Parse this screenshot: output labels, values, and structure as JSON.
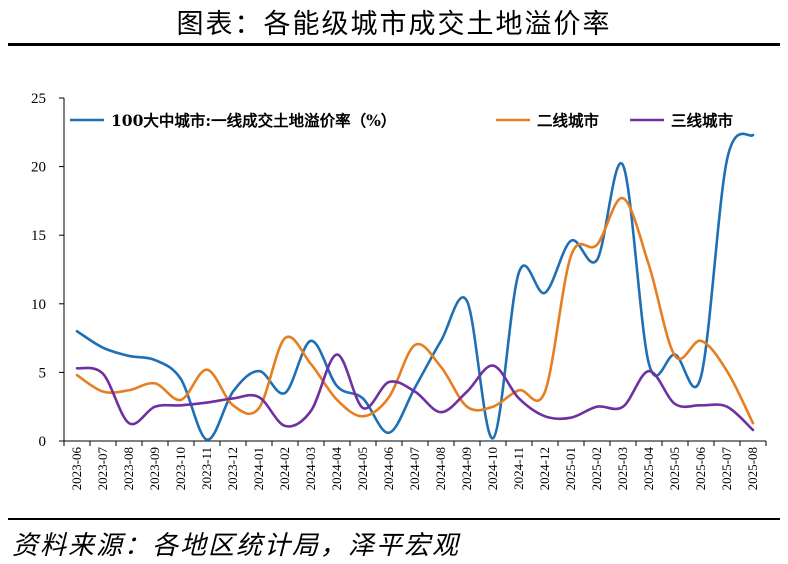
{
  "title": "图表：各能级城市成交土地溢价率",
  "source": "资料来源：各地区统计局，泽平宏观",
  "chart_data": {
    "type": "line",
    "categories": [
      "2023-06",
      "2023-07",
      "2023-08",
      "2023-09",
      "2023-10",
      "2023-11",
      "2023-12",
      "2024-01",
      "2024-02",
      "2024-03",
      "2024-04",
      "2024-05",
      "2024-06",
      "2024-07",
      "2024-08",
      "2024-09",
      "2024-10",
      "2024-11",
      "2024-12",
      "2025-01",
      "2025-02",
      "2025-03",
      "2025-04",
      "2025-05",
      "2025-06",
      "2025-07",
      "2025-08"
    ],
    "ylim": [
      0,
      25
    ],
    "yticks": [
      0,
      5,
      10,
      15,
      20,
      25
    ],
    "legend_position": "top",
    "series": [
      {
        "name": "100大中城市:一线成交土地溢价率（%）",
        "color": "#1f6fb5",
        "values": [
          8.0,
          6.8,
          6.2,
          5.9,
          4.5,
          0.1,
          3.6,
          5.1,
          3.5,
          7.3,
          4.0,
          3.1,
          0.6,
          3.9,
          7.3,
          10.2,
          0.2,
          12.3,
          10.8,
          14.6,
          13.2,
          20.1,
          5.6,
          6.3,
          4.7,
          20.5,
          22.3
        ]
      },
      {
        "name": "二线城市",
        "color": "#e67e22",
        "values": [
          4.8,
          3.6,
          3.7,
          4.2,
          3.0,
          5.2,
          2.6,
          2.4,
          7.5,
          5.6,
          3.0,
          1.8,
          3.2,
          7.0,
          5.4,
          2.5,
          2.5,
          3.7,
          3.6,
          13.5,
          14.3,
          17.7,
          12.8,
          6.2,
          7.3,
          5.1,
          1.3
        ]
      },
      {
        "name": "三线城市",
        "color": "#7030a0",
        "values": [
          5.3,
          4.9,
          1.3,
          2.5,
          2.6,
          2.8,
          3.1,
          3.2,
          1.1,
          2.2,
          6.3,
          2.4,
          4.3,
          3.6,
          2.1,
          3.6,
          5.5,
          3.1,
          1.8,
          1.7,
          2.5,
          2.5,
          5.1,
          2.7,
          2.6,
          2.5,
          0.8
        ]
      }
    ]
  }
}
